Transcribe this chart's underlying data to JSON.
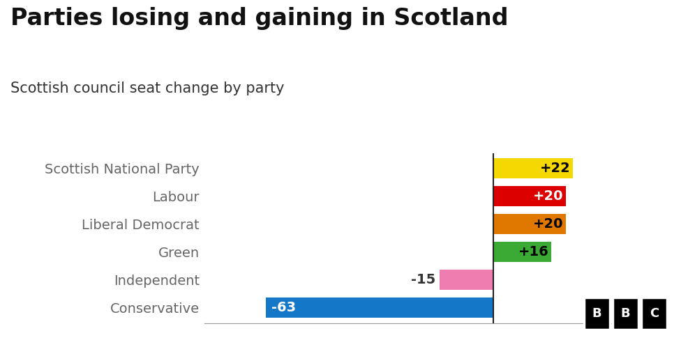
{
  "title": "Parties losing and gaining in Scotland",
  "subtitle": "Scottish council seat change by party",
  "categories": [
    "Scottish National Party",
    "Labour",
    "Liberal Democrat",
    "Green",
    "Independent",
    "Conservative"
  ],
  "values": [
    22,
    20,
    20,
    16,
    -15,
    -63
  ],
  "labels": [
    "+22",
    "+20",
    "+20",
    "+16",
    "-15",
    "-63"
  ],
  "colors": [
    "#f5d800",
    "#dd0000",
    "#e07800",
    "#3aaa35",
    "#f07db0",
    "#1577c8"
  ],
  "label_colors": [
    "#000000",
    "#ffffff",
    "#000000",
    "#000000",
    "#000000",
    "#ffffff"
  ],
  "background_color": "#ffffff",
  "title_fontsize": 24,
  "subtitle_fontsize": 15,
  "label_fontsize": 14,
  "category_fontsize": 14,
  "xlim": [
    -80,
    33
  ],
  "bar_height": 0.72,
  "zero_line_color": "#222222",
  "category_color": "#666666"
}
